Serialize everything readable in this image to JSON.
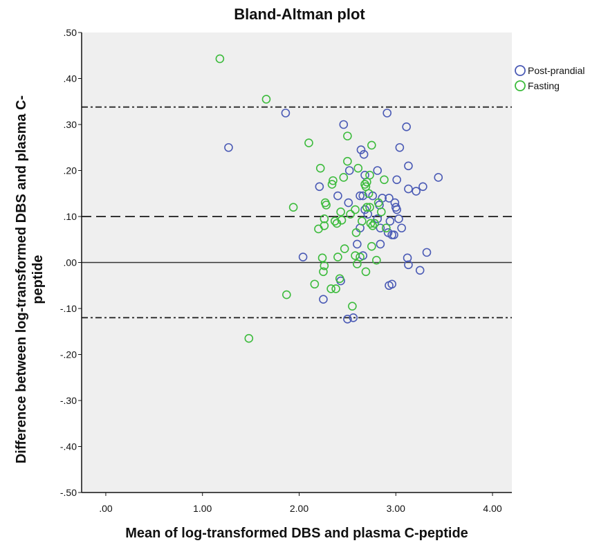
{
  "chart_data": {
    "type": "scatter",
    "title": "Bland-Altman plot",
    "xlabel": "Mean of log-transformed DBS and plasma C-peptide",
    "ylabel": "Difference between log-transformed DBS and plasma C-\npeptide",
    "xlim": [
      -0.25,
      4.2
    ],
    "ylim": [
      -0.5,
      0.5
    ],
    "x_ticks": [
      ".00",
      "1.00",
      "2.00",
      "3.00",
      "4.00"
    ],
    "y_ticks": [
      ".50",
      ".40",
      ".30",
      ".20",
      ".10",
      ".00",
      "-.10",
      "-.20",
      "-.30",
      "-.40",
      "-.50"
    ],
    "grid": false,
    "legend_position": "top-right",
    "background_color": "#efefef",
    "reference_lines": [
      {
        "y": 0.0,
        "style": "solid"
      },
      {
        "y": 0.1,
        "style": "dashed"
      },
      {
        "y": 0.338,
        "style": "dash-dot"
      },
      {
        "y": -0.12,
        "style": "dash-dot"
      }
    ],
    "series": [
      {
        "name": "Post-prandial",
        "color": "#4a5ab5",
        "points": [
          [
            1.27,
            0.25
          ],
          [
            1.86,
            0.325
          ],
          [
            2.04,
            0.012
          ],
          [
            2.21,
            0.165
          ],
          [
            2.25,
            -0.08
          ],
          [
            2.4,
            0.145
          ],
          [
            2.43,
            -0.04
          ],
          [
            2.46,
            0.3
          ],
          [
            2.51,
            0.13
          ],
          [
            2.52,
            0.2
          ],
          [
            2.5,
            -0.123
          ],
          [
            2.56,
            -0.12
          ],
          [
            2.63,
            0.145
          ],
          [
            2.66,
            0.145
          ],
          [
            2.68,
            0.19
          ],
          [
            2.64,
            0.245
          ],
          [
            2.67,
            0.235
          ],
          [
            2.6,
            0.04
          ],
          [
            2.63,
            0.075
          ],
          [
            2.66,
            0.015
          ],
          [
            2.68,
            0.115
          ],
          [
            2.71,
            0.105
          ],
          [
            2.76,
            0.145
          ],
          [
            2.81,
            0.095
          ],
          [
            2.84,
            0.075
          ],
          [
            2.81,
            0.2
          ],
          [
            2.86,
            0.14
          ],
          [
            2.83,
            0.125
          ],
          [
            2.84,
            0.04
          ],
          [
            2.91,
            0.325
          ],
          [
            2.93,
            0.14
          ],
          [
            2.92,
            0.065
          ],
          [
            2.96,
            0.06
          ],
          [
            2.99,
            0.13
          ],
          [
            3.0,
            0.12
          ],
          [
            3.01,
            0.115
          ],
          [
            3.03,
            0.095
          ],
          [
            3.04,
            0.25
          ],
          [
            3.11,
            0.295
          ],
          [
            3.13,
            0.16
          ],
          [
            3.13,
            0.21
          ],
          [
            3.01,
            0.18
          ],
          [
            3.06,
            0.075
          ],
          [
            3.12,
            0.01
          ],
          [
            3.13,
            -0.005
          ],
          [
            3.21,
            0.155
          ],
          [
            3.28,
            0.165
          ],
          [
            3.25,
            -0.017
          ],
          [
            3.32,
            0.022
          ],
          [
            3.44,
            0.185
          ],
          [
            2.93,
            -0.05
          ],
          [
            2.96,
            -0.047
          ],
          [
            2.94,
            0.09
          ],
          [
            2.98,
            0.06
          ]
        ]
      },
      {
        "name": "Fasting",
        "color": "#3cbb3c",
        "points": [
          [
            1.18,
            0.443
          ],
          [
            1.66,
            0.355
          ],
          [
            1.48,
            -0.165
          ],
          [
            1.87,
            -0.07
          ],
          [
            1.94,
            0.12
          ],
          [
            2.1,
            0.26
          ],
          [
            2.16,
            -0.047
          ],
          [
            2.2,
            0.073
          ],
          [
            2.22,
            0.205
          ],
          [
            2.24,
            0.01
          ],
          [
            2.25,
            -0.02
          ],
          [
            2.26,
            0.095
          ],
          [
            2.26,
            0.08
          ],
          [
            2.27,
            0.13
          ],
          [
            2.28,
            0.125
          ],
          [
            2.26,
            -0.007
          ],
          [
            2.33,
            -0.057
          ],
          [
            2.34,
            0.17
          ],
          [
            2.35,
            0.178
          ],
          [
            2.37,
            0.09
          ],
          [
            2.38,
            -0.057
          ],
          [
            2.39,
            0.085
          ],
          [
            2.4,
            0.012
          ],
          [
            2.42,
            -0.035
          ],
          [
            2.43,
            0.11
          ],
          [
            2.44,
            0.092
          ],
          [
            2.46,
            0.185
          ],
          [
            2.47,
            0.03
          ],
          [
            2.5,
            0.22
          ],
          [
            2.5,
            0.275
          ],
          [
            2.53,
            0.105
          ],
          [
            2.55,
            -0.095
          ],
          [
            2.58,
            0.115
          ],
          [
            2.59,
            0.065
          ],
          [
            2.6,
            -0.003
          ],
          [
            2.61,
            0.205
          ],
          [
            2.63,
            0.012
          ],
          [
            2.65,
            0.09
          ],
          [
            2.68,
            0.17
          ],
          [
            2.69,
            0.165
          ],
          [
            2.69,
            -0.02
          ],
          [
            2.7,
            0.175
          ],
          [
            2.72,
            0.15
          ],
          [
            2.73,
            0.12
          ],
          [
            2.74,
            0.085
          ],
          [
            2.75,
            0.035
          ],
          [
            2.76,
            0.08
          ],
          [
            2.75,
            0.255
          ],
          [
            2.78,
            0.085
          ],
          [
            2.8,
            0.005
          ],
          [
            2.85,
            0.11
          ],
          [
            2.88,
            0.18
          ],
          [
            2.9,
            0.075
          ],
          [
            2.82,
            0.13
          ],
          [
            2.73,
            0.19
          ],
          [
            2.58,
            0.015
          ],
          [
            2.7,
            0.12
          ]
        ]
      }
    ]
  }
}
